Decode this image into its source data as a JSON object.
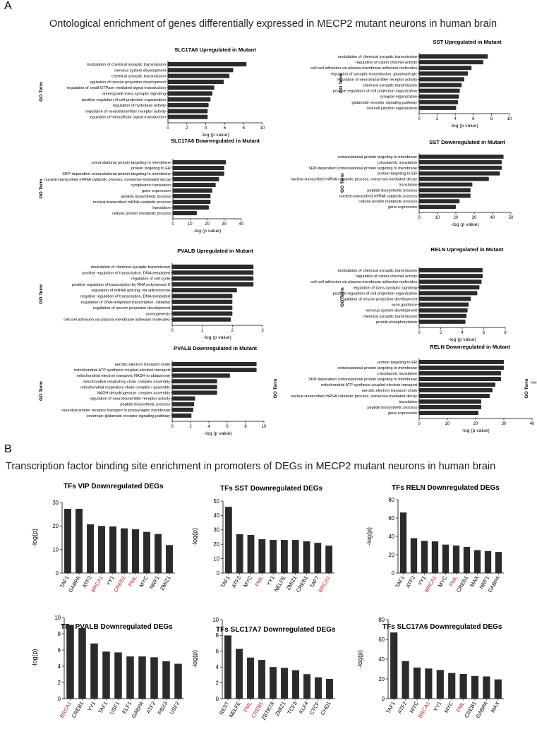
{
  "panels": {
    "a": {
      "letter": "A",
      "title": "Ontological enrichment of genes differentially expressed in MECP2 mutant neurons in human brain"
    },
    "b": {
      "letter": "B",
      "title": "Transcription factor binding site enrichment  in promoters of DEGs in MECP2 mutant neurons in human brain"
    }
  },
  "colors": {
    "bar": "#2b2b2b",
    "highlight": "#c0272d",
    "axis": "#000000"
  },
  "go_charts": [
    {
      "id": "go-slc17a6-up",
      "title": "SLC17A6 Upregulated in Mutant",
      "xlabel": "-log (p value)",
      "ylabel": "GO Term",
      "xlim": [
        0,
        10
      ],
      "xticks": [
        0,
        2,
        4,
        6,
        8,
        10
      ],
      "categories": [
        "modulation of chemical synaptic transmission",
        "nervous system development",
        "chemical synaptic transmission",
        "egulation of neuron projection development",
        "regulation of small GTPase mediated signal transduction",
        "anterograde trans-synaptic signaling",
        "positive regulation of cell projection organization",
        "regulation of hydrolase activity",
        "regulation of neurotransmitter receptor activity",
        "egulation of intracellular signal transduction"
      ],
      "values": [
        8.3,
        6.9,
        6.5,
        5.9,
        4.9,
        4.7,
        4.5,
        4.3,
        4.2,
        4.2
      ]
    },
    {
      "id": "go-sst-up",
      "title": "SST Upregulated in Mutant",
      "xlabel": "-log (p value)",
      "ylabel": "GO Term",
      "xlim": [
        0,
        10
      ],
      "xticks": [
        0,
        2,
        4,
        6,
        8,
        10
      ],
      "categories": [
        "modulation of chemical synaptic transmission",
        "regulation of cation channel activity",
        "cell-cell adhesion via plasma-membrane adhesion molecules",
        "regulation of synaptic transmission, glutamatergic",
        "regulation of neurotransmitter receptor activity",
        "chemical synaptic transmission",
        "positive regulation of cell projection organization",
        "synapse organization",
        "glutamate receptor signaling pathway",
        "cell-cell junction organization"
      ],
      "values": [
        7.6,
        7.1,
        5.8,
        5.4,
        5.0,
        4.7,
        4.5,
        4.4,
        4.3,
        4.1
      ]
    },
    {
      "id": "go-slc17a6-down",
      "title": "SLC17A6 Downregulated in Mutant",
      "xlabel": "-log (p value)",
      "ylabel": "GO Term",
      "xlim": [
        0,
        40
      ],
      "xticks": [
        0,
        10,
        20,
        30,
        40
      ],
      "categories": [
        "cotranslational protein targeting to membrane",
        "protein targeting to ER",
        "SRP-dependent cotranslational protein targeting to membrane",
        "nuclear-transcribed mRNA catabolic process, nonsense-mediated decay",
        "cytoplasmic translation",
        "gene expression",
        "peptide biosynthetic process",
        "nuclear-transcribed mRNA catabolic process",
        "translation",
        "cellular protein metabolic process"
      ],
      "values": [
        31,
        30,
        30,
        27,
        25,
        23,
        22,
        22,
        21,
        14
      ]
    },
    {
      "id": "go-sst-down",
      "title": "SST Downregulated in Mutant",
      "xlabel": "-log (p value)",
      "ylabel": "GO Term",
      "xlim": [
        0,
        50
      ],
      "xticks": [
        0,
        10,
        20,
        30,
        40,
        50
      ],
      "categories": [
        "cotranslational protein targeting to membrane",
        "cytoplasmic translation",
        "SRP-dependent cotranslational protein targeting to membrane",
        "protein targeting to ER",
        "nuclear-transcribed mRNA catabolic process, nonsense-mediated decay",
        "translation",
        "peptide biosynthetic process",
        "nuclear-transcribed mRNA catabolic process",
        "cellular protein metabolic process",
        "gene expression"
      ],
      "values": [
        46,
        45,
        45,
        44,
        38,
        29,
        28,
        28,
        22,
        20
      ]
    },
    {
      "id": "go-pvalb-up",
      "title": "PVALB Upregulated in Mutant",
      "xlabel": "-log (p value)",
      "ylabel": "GO Term",
      "xlim": [
        0,
        3
      ],
      "xticks": [
        0,
        1,
        2,
        3
      ],
      "categories": [
        "modulation of chemical synaptic transmission",
        "positive regulation of transcription, DNA-templated",
        "regulation of cell cycle",
        "positive regulation of transcription by RNA polymerase II",
        "regulation of mRNA splicing, via spliceosome",
        "negative regulation of transcription, DNA-templated",
        "regulation of DNA-templated transcription, initiation",
        "regulation of neuron projection development",
        "axonogenesis",
        "cell-cell adhesion via plasma-membrane adhesion molecules"
      ],
      "values": [
        2.7,
        2.7,
        2.7,
        2.7,
        2.15,
        2.0,
        2.0,
        2.0,
        2.0,
        1.95
      ]
    },
    {
      "id": "go-reln-up",
      "title": "RELN Upregulated in Mutant",
      "xlabel": "-log (p value)",
      "ylabel": "GO Term",
      "xlim": [
        0,
        8
      ],
      "xticks": [
        0,
        2,
        4,
        6,
        8
      ],
      "categories": [
        "modulation of chemical synaptic transmission",
        "regulation of cation channel activity",
        "cell-cell adhesion via plasma-membrane adhesion molecules",
        "regulation of trans-synaptic signaling",
        "positive regulation of cell projection organization",
        "regulation of neuron projection development",
        "axon guidance",
        "nervous system development",
        "chemical synaptic transmission",
        "protein phosphorylation"
      ],
      "values": [
        5.9,
        5.9,
        5.8,
        5.6,
        5.4,
        4.8,
        4.6,
        4.5,
        4.4,
        4.3
      ]
    },
    {
      "id": "go-pvalb-down",
      "title": "PVALB Downregulated in Mutant",
      "xlabel": "-log (p value)",
      "ylabel": "GO Term",
      "xlim": [
        0,
        10
      ],
      "xticks": [
        0,
        2,
        4,
        6,
        8,
        10
      ],
      "categories": [
        "aerobic electron transport chain",
        "mitochondrial ATP synthesis coupled electron transport",
        "mitochondrial electron transport, NADH to ubiquinone",
        "mitochondrial respiratory chain complex assembly",
        "mitochondrial respiratory chain complex I assembly",
        "NADH dehydrogenase complex assembly",
        "regulation of neurotransmitter receptor activity",
        "peptide biosynthetic process",
        "neurotransmitter receptor transport to postsynaptic membrane",
        "ionotropic glutamate receptor signaling pathway"
      ],
      "values": [
        9.2,
        9.2,
        6.3,
        4.9,
        4.9,
        4.9,
        2.5,
        2.4,
        2.3,
        2.1
      ]
    },
    {
      "id": "go-reln-down",
      "title": "RELN Downregulated in Mutant",
      "xlabel": "-log (p value)",
      "ylabel": "GO Term",
      "xlim": [
        0,
        40
      ],
      "xticks": [
        0,
        10,
        20,
        30,
        40
      ],
      "categories": [
        "protein targeting to ER",
        "cotranslational protein targeting to membrane",
        "cytoplasmic translation",
        "SRP-dependent cotranslational protein targeting to membrane",
        "mitochondrial ATP synthesis coupled electron transport",
        "aerobic electron transport chain",
        "nuclear-transcribed mRNA catabolic process, nonsense-mediated decay",
        "translation",
        "peptide biosynthetic process",
        "gene expression"
      ],
      "values": [
        30,
        30,
        29,
        29,
        27,
        26,
        25,
        22,
        22,
        21
      ],
      "side_label": "GO Term",
      "side_fragment": "nuc"
    }
  ],
  "tf_charts": [
    {
      "id": "tf-vip",
      "title": "TFs VIP Downregulated DEGs",
      "ylabel": "-log(p)",
      "ylim": [
        0,
        30
      ],
      "yticks": [
        0,
        10,
        20,
        30
      ],
      "categories": [
        "TAF1",
        "GABPA",
        "ATF2",
        "BRCA1",
        "YY1",
        "CREB1",
        "PML",
        "MYC",
        "NRF1",
        "ZMIZ1"
      ],
      "values": [
        27.3,
        27.3,
        20.7,
        20.0,
        19.8,
        19.0,
        18.6,
        17.5,
        16.6,
        11.9
      ],
      "highlight": [
        "BRCA1",
        "CREB1",
        "PML"
      ]
    },
    {
      "id": "tf-sst",
      "title": "TFs SST Downregulated DEGs",
      "ylabel": "-log(p)",
      "ylim": [
        0,
        50
      ],
      "yticks": [
        0,
        10,
        20,
        30,
        40,
        50
      ],
      "categories": [
        "TAF1",
        "ATF2",
        "MYC",
        "PML",
        "YY1",
        "NELFE",
        "ZMIZ1",
        "CREB1",
        "TAF7",
        "BRCA1"
      ],
      "values": [
        46,
        27,
        26.5,
        23.5,
        23,
        23,
        23,
        22,
        21,
        19
      ],
      "highlight": [
        "PML",
        "BRCA1"
      ]
    },
    {
      "id": "tf-reln",
      "title": "TFs RELN Downregulated DEGs",
      "ylabel": "-log(p)",
      "ylim": [
        0,
        80
      ],
      "yticks": [
        0,
        20,
        40,
        60,
        80
      ],
      "categories": [
        "TAF1",
        "ATF2",
        "YY1",
        "BRCA1",
        "MYC",
        "PML",
        "CREB1",
        "MAX",
        "NRF1",
        "GABPA"
      ],
      "values": [
        66,
        38,
        35,
        34.5,
        31,
        30,
        28.5,
        25,
        24,
        23
      ],
      "highlight": [
        "BRCA1",
        "PML"
      ]
    },
    {
      "id": "tf-pvalb",
      "title": "TFs PVALB Downregulated DEGs",
      "ylabel": "-log(p)",
      "ylim": [
        0,
        10
      ],
      "yticks": [
        0,
        2,
        4,
        6,
        8,
        10
      ],
      "categories": [
        "BRCA1",
        "CREB1",
        "YY1",
        "TAF1",
        "USF1",
        "ELF1",
        "GABPA",
        "ATF2",
        "PBX3",
        "USF2"
      ],
      "values": [
        9.1,
        8.7,
        6.8,
        5.8,
        5.7,
        5.2,
        5.2,
        5.1,
        4.6,
        4.3
      ],
      "highlight": [
        "BRCA1"
      ]
    },
    {
      "id": "tf-slc17a7",
      "title": "TFs SLC17A7 Downregulated DEGs",
      "ylabel": "-log(p)",
      "ylim": [
        0,
        10
      ],
      "yticks": [
        0,
        2,
        4,
        6,
        8,
        10
      ],
      "categories": [
        "REST",
        "NELFE",
        "PML",
        "CREB1",
        "ZBTB7A",
        "ZMIZ1",
        "TCF3",
        "KLF4",
        "CTCF",
        "CHD1"
      ],
      "values": [
        8.0,
        6.3,
        5.2,
        4.9,
        4.0,
        3.9,
        3.6,
        3.1,
        2.7,
        2.5
      ],
      "highlight": [
        "PML",
        "CREB1"
      ]
    },
    {
      "id": "tf-slc17a6",
      "title": "TFs SLC17A6 Downregulated DEGs",
      "ylabel": "-log(p)",
      "ylim": [
        0,
        80
      ],
      "yticks": [
        0,
        20,
        40,
        60,
        80
      ],
      "categories": [
        "TAF1",
        "ATF2",
        "MYC",
        "BRCA1",
        "YY1",
        "MYC",
        "PML",
        "CREB1",
        "GABPA",
        "MAX"
      ],
      "values": [
        67,
        38,
        31.5,
        30.5,
        29,
        26,
        25,
        23,
        22.5,
        19.5
      ],
      "highlight": [
        "BRCA1",
        "PML"
      ]
    }
  ]
}
